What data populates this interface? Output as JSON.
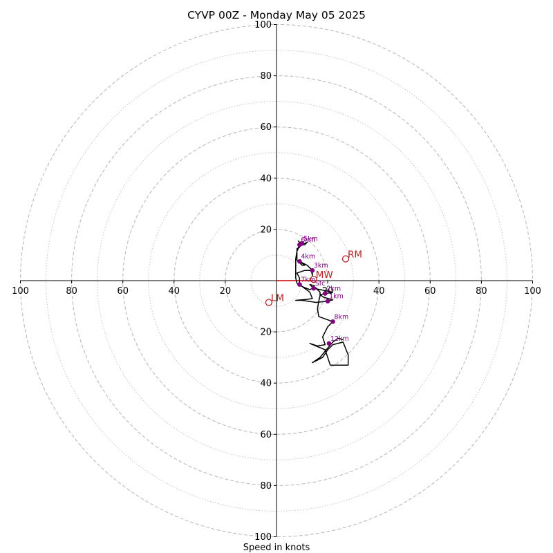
{
  "chart_data": {
    "type": "hodograph",
    "title": "CYVP 00Z - Monday May 05 2025",
    "xlabel": "Speed in knots",
    "ylabel": "",
    "range": [
      -100,
      100
    ],
    "ring_interval_major": 20,
    "ring_interval_minor": 10,
    "grid": true,
    "tick_labels": [
      "100",
      "80",
      "60",
      "40",
      "20",
      "20",
      "40",
      "60",
      "80",
      "100"
    ],
    "y_tick_labels": [
      "100",
      "80",
      "60",
      "40",
      "20",
      "20",
      "40",
      "60",
      "80",
      "100"
    ],
    "x_ticks": [
      -100,
      -80,
      -60,
      -40,
      -20,
      20,
      40,
      60,
      80,
      100
    ],
    "y_ticks": [
      100,
      80,
      60,
      40,
      20,
      -20,
      -40,
      -60,
      -80,
      -100
    ],
    "trace": [
      [
        15,
        -2
      ],
      [
        13,
        -1.5
      ],
      [
        14.5,
        -3
      ],
      [
        17,
        -3.5
      ],
      [
        22,
        -4.5
      ],
      [
        19.5,
        -5
      ],
      [
        17,
        -5.5
      ],
      [
        18.5,
        -6.5
      ],
      [
        22,
        -7.5
      ],
      [
        20,
        -8
      ],
      [
        15.5,
        -8.5
      ],
      [
        10,
        -7.7
      ],
      [
        7.5,
        -7.7
      ],
      [
        12,
        -7.3
      ],
      [
        14,
        -7
      ],
      [
        13,
        -4.5
      ],
      [
        9,
        -1.5
      ],
      [
        9,
        1
      ],
      [
        8,
        3
      ],
      [
        11,
        4
      ],
      [
        14,
        4
      ],
      [
        14,
        2
      ],
      [
        13.5,
        4.5
      ],
      [
        12,
        6
      ],
      [
        9,
        7.5
      ],
      [
        11,
        6
      ],
      [
        10,
        6
      ],
      [
        8,
        8
      ],
      [
        8,
        12.5
      ],
      [
        9,
        13
      ],
      [
        9,
        14.5
      ],
      [
        10,
        15
      ],
      [
        9,
        15
      ],
      [
        10,
        14.5
      ],
      [
        11,
        14.5
      ],
      [
        12,
        15
      ],
      [
        11,
        14
      ],
      [
        10,
        14
      ],
      [
        8.5,
        15.5
      ],
      [
        9,
        15
      ],
      [
        8.5,
        12.5
      ],
      [
        8,
        11.5
      ],
      [
        7.5,
        8.5
      ],
      [
        7.5,
        6
      ],
      [
        7.5,
        3
      ],
      [
        7.5,
        1
      ],
      [
        8,
        -1
      ],
      [
        10.5,
        -2.5
      ],
      [
        13,
        -3.5
      ],
      [
        15,
        -2.5
      ],
      [
        17,
        -4.5
      ],
      [
        17,
        -6
      ],
      [
        16.5,
        -8
      ],
      [
        16,
        -11
      ],
      [
        16.5,
        -14
      ],
      [
        22,
        -16
      ],
      [
        20,
        -18
      ],
      [
        18,
        -22
      ],
      [
        19,
        -25
      ],
      [
        16,
        -25.5
      ],
      [
        13,
        -24.5
      ],
      [
        19,
        -27
      ],
      [
        21,
        -33
      ],
      [
        28,
        -33
      ],
      [
        28,
        -29
      ],
      [
        26,
        -24
      ],
      [
        22,
        -25
      ],
      [
        20,
        -27
      ],
      [
        18,
        -30
      ],
      [
        16,
        -31
      ],
      [
        14,
        -32
      ],
      [
        17,
        -30
      ],
      [
        19,
        -27.5
      ],
      [
        22,
        -24
      ],
      [
        24,
        -22.5
      ],
      [
        26,
        -23
      ]
    ],
    "height_points": [
      {
        "label": "Sfc",
        "x": 14.5,
        "y": -3
      },
      {
        "label": "1km",
        "x": 20,
        "y": -8
      },
      {
        "label": "2km",
        "x": 19,
        "y": -5
      },
      {
        "label": "3km",
        "x": 14,
        "y": 4
      },
      {
        "label": "4km",
        "x": 9,
        "y": 7.5
      },
      {
        "label": "5km",
        "x": 10,
        "y": 14.5
      },
      {
        "label": "6km",
        "x": 9,
        "y": 14
      },
      {
        "label": "7km",
        "x": 9,
        "y": -1.5
      },
      {
        "label": "8km",
        "x": 22,
        "y": -16
      },
      {
        "label": "12km",
        "x": 20.5,
        "y": -24.5
      }
    ],
    "storm_motion": [
      {
        "label": "RM",
        "x": 27,
        "y": 8.5
      },
      {
        "label": "LM",
        "x": -3,
        "y": -8.5
      },
      {
        "label": "MW",
        "x": 14.5,
        "y": 0.5
      }
    ],
    "mean_wind_vector": {
      "x1": 0,
      "y1": 0,
      "x2": 14.5,
      "y2": 0
    },
    "colors": {
      "trace": "#000000",
      "height_points": "#800080",
      "storm_motion": "#b22222",
      "grid": "#bbbbbb",
      "vector": "#cc0000"
    }
  }
}
